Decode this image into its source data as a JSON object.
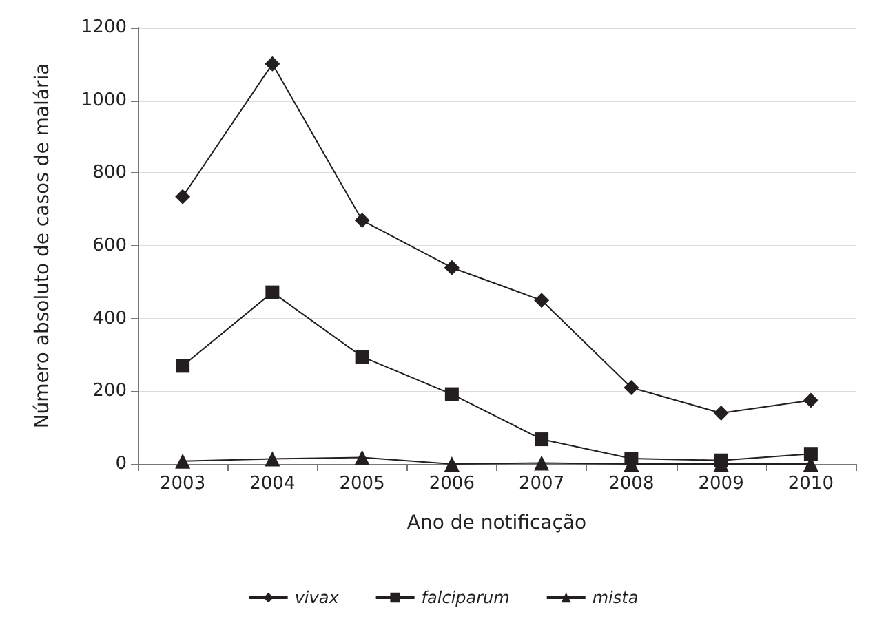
{
  "chart_data": {
    "type": "line",
    "xlabel": "Ano de notificação",
    "ylabel": "Número absoluto de casos de malária",
    "categories": [
      "2003",
      "2004",
      "2005",
      "2006",
      "2007",
      "2008",
      "2009",
      "2010"
    ],
    "series": [
      {
        "name": "vivax",
        "color": "#231f20",
        "marker": "diamond",
        "values": [
          735,
          1100,
          670,
          540,
          450,
          210,
          140,
          175
        ]
      },
      {
        "name": "falciparum",
        "color": "#231f20",
        "marker": "square",
        "values": [
          270,
          472,
          295,
          192,
          68,
          15,
          10,
          28
        ]
      },
      {
        "name": "mista",
        "color": "#231f20",
        "marker": "triangle",
        "values": [
          8,
          14,
          18,
          0,
          3,
          0,
          0,
          0
        ]
      }
    ],
    "ylim": [
      0,
      1200
    ],
    "yticks": [
      0,
      200,
      400,
      600,
      800,
      1000,
      1200
    ],
    "grid": "y",
    "legend": "bottom",
    "line_style": "solid"
  }
}
